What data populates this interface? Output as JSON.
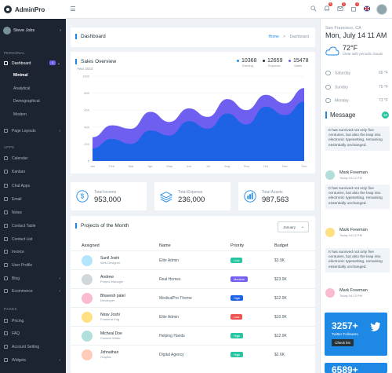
{
  "app": {
    "name": "AdminPro"
  },
  "topbar": {
    "notif1_count": "5",
    "notif2_count": "3",
    "notif3_count": "3"
  },
  "profile": {
    "name": "Steve Jobs"
  },
  "sidebar": {
    "sections": [
      "PERSONAL",
      "APPS",
      "PAGES"
    ],
    "dashboard": {
      "label": "Dashboard",
      "badge": "4"
    },
    "sub_items": [
      "Minimal",
      "Analytical",
      "Demographical",
      "Modern"
    ],
    "page_layouts": "Page Layouts",
    "apps": [
      "Calendar",
      "Kanban",
      "Chat Apps",
      "Email",
      "Notes",
      "Contact Table",
      "Contact List",
      "Invoice",
      "User Profile",
      "Blog",
      "Ecommerce"
    ],
    "pages": [
      "Pricing",
      "FAQ",
      "Account Setting",
      "Widgets"
    ]
  },
  "header": {
    "title": "Dashboard",
    "breadcrumb_home": "Home",
    "breadcrumb_sep": ">",
    "breadcrumb_current": "Dashboard"
  },
  "sales": {
    "title": "Sales Overview",
    "year": "Year 2023",
    "stats": [
      {
        "value": "10368",
        "label": "Earning",
        "color": "#1e88e5"
      },
      {
        "value": "12659",
        "label": "Expense",
        "color": "#263238"
      },
      {
        "value": "15478",
        "label": "Sales",
        "color": "#7460ee"
      }
    ]
  },
  "chart_data": {
    "type": "area",
    "categories": [
      "Jan",
      "Feb",
      "Mar",
      "Apr",
      "May",
      "Jun",
      "Jul",
      "Aug",
      "Sep",
      "Oct",
      "Nov",
      "Dec"
    ],
    "ylim": [
      0,
      1000
    ],
    "yticks": [
      "1000",
      "800",
      "600",
      "400",
      "200",
      "0"
    ],
    "series": [
      {
        "color": "#1e62e6",
        "values": [
          150,
          260,
          200,
          360,
          300,
          470,
          380,
          560,
          430,
          640,
          540,
          700
        ]
      },
      {
        "color": "#6f5ff0",
        "values": [
          280,
          420,
          380,
          580,
          460,
          620,
          520,
          730,
          600,
          780,
          680,
          860
        ]
      }
    ],
    "grid": true
  },
  "kpis": [
    {
      "label": "Total Income",
      "value": "953,000"
    },
    {
      "label": "Total Expense",
      "value": "236,000"
    },
    {
      "label": "Total Assets",
      "value": "987,563"
    }
  ],
  "projects": {
    "title": "Projects of the Month",
    "month_select": "January",
    "headers": [
      "Assigned",
      "Name",
      "Priority",
      "Budget"
    ],
    "rows": [
      {
        "name": "Sunil Joshi",
        "role": "Web Designer",
        "project": "Elite Admin",
        "priority": "Low",
        "priority_color": "#26c6a0",
        "budget": "$3.9K",
        "avatar": "#b3e5fc"
      },
      {
        "name": "Andrew",
        "role": "Project Manager",
        "project": "Real Homes",
        "priority": "Medium",
        "priority_color": "#7460ee",
        "budget": "$23.9K",
        "avatar": "#cfd8dc"
      },
      {
        "name": "Bhavesh patel",
        "role": "Developer",
        "project": "MedicalPro Theme",
        "priority": "High",
        "priority_color": "#1e62e6",
        "budget": "$12.9K",
        "avatar": "#f8bbd0"
      },
      {
        "name": "Nirav Joshi",
        "role": "Frontend Eng",
        "project": "Elite Admin",
        "priority": "Low",
        "priority_color": "#ef5350",
        "budget": "$10.9K",
        "avatar": "#ffe082"
      },
      {
        "name": "Micheal Doe",
        "role": "Content Writer",
        "project": "Helping Hands",
        "priority": "High",
        "priority_color": "#26c6a0",
        "budget": "$12.9K",
        "avatar": "#b2dfdb"
      },
      {
        "name": "Johnathan",
        "role": "Graphic",
        "project": "Digital Agency",
        "priority": "High",
        "priority_color": "#26c6a0",
        "budget": "$2.6K",
        "avatar": "#ffccbc"
      }
    ]
  },
  "weather": {
    "city": "San Francisco, CA",
    "date": "Mon, July 14 11 AM",
    "temp": "72°F",
    "desc": "Clear with periodic clouds",
    "days": [
      {
        "day": "Saturday",
        "temp": "65 °F"
      },
      {
        "day": "Sunday",
        "temp": "70 °F"
      },
      {
        "day": "Monday",
        "temp": "73 °F"
      }
    ]
  },
  "messages": {
    "title": "Message",
    "count": "16",
    "items": [
      {
        "text": "It has survived not only five centuries, but also the leap into electronic typesetting, remaining essentially unchanged.",
        "name": "Mark Freeman",
        "time": "Today 04:12 PM"
      },
      {
        "text": "It has survived not only five centuries, but also the leap into electronic typesetting, remaining essentially unchanged.",
        "name": "Mark Freeman",
        "time": "Today 04:12 PM"
      },
      {
        "text": "It has survived not only five centuries, but also the leap into electronic typesetting, remaining essentially unchanged.",
        "name": "Mark Freeman",
        "time": "Today 04:12 PM"
      }
    ]
  },
  "twitter": [
    {
      "count": "3257+",
      "label": "Twitter Followers",
      "button": "Check list"
    },
    {
      "count": "6589+"
    }
  ]
}
